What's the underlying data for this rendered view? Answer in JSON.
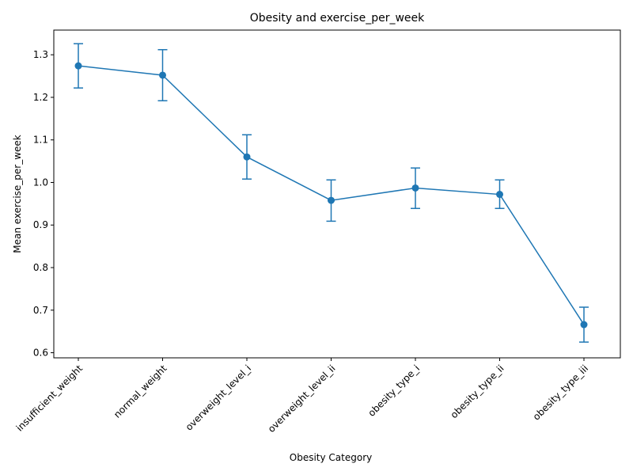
{
  "chart_data": {
    "type": "line",
    "title": "Obesity and exercise_per_week",
    "xlabel": "Obesity Category",
    "ylabel": "Mean exercise_per_week",
    "categories": [
      "insufficient_weight",
      "normal_weight",
      "overweight_level_i",
      "overweight_level_ii",
      "obesity_type_i",
      "obesity_type_ii",
      "obesity_type_iii"
    ],
    "series": [
      {
        "values": [
          1.274,
          1.252,
          1.06,
          0.958,
          0.987,
          0.972,
          0.666
        ],
        "error_low": [
          1.222,
          1.192,
          1.008,
          0.909,
          0.939,
          0.939,
          0.625
        ],
        "error_high": [
          1.326,
          1.312,
          1.112,
          1.006,
          1.034,
          1.006,
          0.707
        ],
        "color": "#1f77b4"
      }
    ],
    "yticks": [
      "0.6",
      "0.7",
      "0.8",
      "0.9",
      "1.0",
      "1.1",
      "1.2",
      "1.3"
    ],
    "ylim": [
      0.588,
      1.358
    ],
    "grid": false,
    "legend": "none"
  }
}
